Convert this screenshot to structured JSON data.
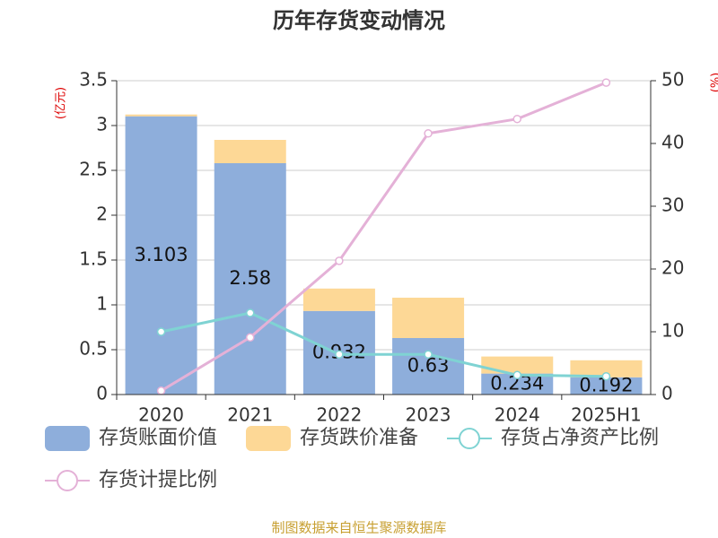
{
  "chart_data": {
    "type": "bar",
    "title": "历年存货变动情况",
    "ylabel": "(亿元)",
    "y2label": "(%)",
    "categories": [
      "2020",
      "2021",
      "2022",
      "2023",
      "2024",
      "2025H1"
    ],
    "ylim": [
      0,
      3.5
    ],
    "yticks": [
      0,
      0.5,
      1,
      1.5,
      2,
      2.5,
      3,
      3.5
    ],
    "y2lim": [
      0,
      50
    ],
    "y2ticks": [
      0,
      10,
      20,
      30,
      40,
      50
    ],
    "grid": true,
    "stacked": true,
    "series": [
      {
        "name": "存货账面价值",
        "type": "bar",
        "color": "#8eaedb",
        "values": [
          3.103,
          2.58,
          0.932,
          0.63,
          0.234,
          0.192
        ]
      },
      {
        "name": "存货跌价准备",
        "type": "bar",
        "color": "#fdd896",
        "values": [
          0.02,
          0.26,
          0.25,
          0.45,
          0.19,
          0.19
        ]
      },
      {
        "name": "存货占净资产比例",
        "type": "line",
        "axis": "y2",
        "color": "#7fd3d3",
        "values": [
          10,
          13,
          6.4,
          6.4,
          3.1,
          2.9
        ]
      },
      {
        "name": "存货计提比例",
        "type": "line",
        "axis": "y2",
        "color": "#e4b1d7",
        "values": [
          0.6,
          9.1,
          21.3,
          41.6,
          43.9,
          49.7
        ]
      }
    ],
    "source": "制图数据来自恒生聚源数据库"
  }
}
